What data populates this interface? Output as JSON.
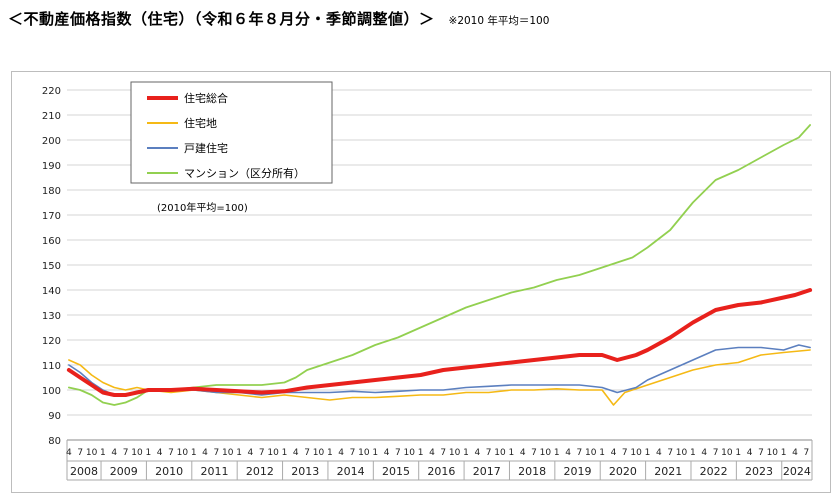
{
  "header": {
    "title": "＜不動産価格指数（住宅）（令和６年８月分・季節調整値）＞",
    "note": "※2010 年平均＝100"
  },
  "chart_data": {
    "type": "line",
    "note": "(2010年平均=100)",
    "ylim": [
      80,
      220
    ],
    "yticks": [
      80,
      90,
      100,
      110,
      120,
      130,
      140,
      150,
      160,
      170,
      180,
      190,
      200,
      210,
      220
    ],
    "x_month_labels": [
      "4",
      "7",
      "10",
      "1"
    ],
    "years": [
      "2008",
      "2009",
      "2010",
      "2011",
      "2012",
      "2013",
      "2014",
      "2015",
      "2016",
      "2017",
      "2018",
      "2019",
      "2020",
      "2021",
      "2022",
      "2023",
      "2024"
    ],
    "x_start": "2008-04",
    "x_end": "2024-08",
    "grid": true,
    "legend_position": "top-left",
    "series": [
      {
        "name": "住宅総合",
        "color": "#e8211c",
        "width": 4,
        "points": [
          [
            "2008-04",
            108
          ],
          [
            "2008-07",
            105
          ],
          [
            "2008-10",
            102
          ],
          [
            "2009-01",
            99
          ],
          [
            "2009-04",
            98
          ],
          [
            "2009-07",
            98
          ],
          [
            "2009-10",
            99
          ],
          [
            "2010-01",
            100
          ],
          [
            "2010-07",
            100
          ],
          [
            "2011-01",
            100.5
          ],
          [
            "2011-07",
            100
          ],
          [
            "2012-01",
            99.5
          ],
          [
            "2012-07",
            99
          ],
          [
            "2013-01",
            99.5
          ],
          [
            "2013-07",
            101
          ],
          [
            "2014-01",
            102
          ],
          [
            "2014-07",
            103
          ],
          [
            "2015-01",
            104
          ],
          [
            "2015-07",
            105
          ],
          [
            "2016-01",
            106
          ],
          [
            "2016-07",
            108
          ],
          [
            "2017-01",
            109
          ],
          [
            "2017-07",
            110
          ],
          [
            "2018-01",
            111
          ],
          [
            "2018-07",
            112
          ],
          [
            "2019-01",
            113
          ],
          [
            "2019-07",
            114
          ],
          [
            "2020-01",
            114
          ],
          [
            "2020-05",
            112
          ],
          [
            "2020-10",
            114
          ],
          [
            "2021-01",
            116
          ],
          [
            "2021-07",
            121
          ],
          [
            "2022-01",
            127
          ],
          [
            "2022-07",
            132
          ],
          [
            "2023-01",
            134
          ],
          [
            "2023-07",
            135
          ],
          [
            "2024-01",
            137
          ],
          [
            "2024-04",
            138
          ],
          [
            "2024-08",
            140
          ]
        ]
      },
      {
        "name": "住宅地",
        "color": "#f5b915",
        "width": 1.6,
        "points": [
          [
            "2008-04",
            112
          ],
          [
            "2008-07",
            110
          ],
          [
            "2008-10",
            106
          ],
          [
            "2009-01",
            103
          ],
          [
            "2009-04",
            101
          ],
          [
            "2009-07",
            100
          ],
          [
            "2009-10",
            101
          ],
          [
            "2010-01",
            100
          ],
          [
            "2010-07",
            99
          ],
          [
            "2011-01",
            100
          ],
          [
            "2011-07",
            99
          ],
          [
            "2012-01",
            98
          ],
          [
            "2012-07",
            97
          ],
          [
            "2013-01",
            98
          ],
          [
            "2013-07",
            97
          ],
          [
            "2014-01",
            96
          ],
          [
            "2014-07",
            97
          ],
          [
            "2015-01",
            97
          ],
          [
            "2015-07",
            97.5
          ],
          [
            "2016-01",
            98
          ],
          [
            "2016-07",
            98
          ],
          [
            "2017-01",
            99
          ],
          [
            "2017-07",
            99
          ],
          [
            "2018-01",
            100
          ],
          [
            "2018-07",
            100
          ],
          [
            "2019-01",
            100.5
          ],
          [
            "2019-07",
            100
          ],
          [
            "2020-01",
            100
          ],
          [
            "2020-04",
            94
          ],
          [
            "2020-07",
            99
          ],
          [
            "2021-01",
            102
          ],
          [
            "2021-07",
            105
          ],
          [
            "2022-01",
            108
          ],
          [
            "2022-07",
            110
          ],
          [
            "2023-01",
            111
          ],
          [
            "2023-07",
            114
          ],
          [
            "2024-01",
            115
          ],
          [
            "2024-08",
            116
          ]
        ]
      },
      {
        "name": "戸建住宅",
        "color": "#5b7fbf",
        "width": 1.6,
        "points": [
          [
            "2008-04",
            110
          ],
          [
            "2008-07",
            107
          ],
          [
            "2008-10",
            103
          ],
          [
            "2009-01",
            100
          ],
          [
            "2009-04",
            98
          ],
          [
            "2009-07",
            98
          ],
          [
            "2009-10",
            99
          ],
          [
            "2010-01",
            100
          ],
          [
            "2010-07",
            100
          ],
          [
            "2011-01",
            100
          ],
          [
            "2011-07",
            99
          ],
          [
            "2012-01",
            99
          ],
          [
            "2012-07",
            98
          ],
          [
            "2013-01",
            99
          ],
          [
            "2013-07",
            99
          ],
          [
            "2014-01",
            99
          ],
          [
            "2014-07",
            99.5
          ],
          [
            "2015-01",
            99
          ],
          [
            "2015-07",
            99.5
          ],
          [
            "2016-01",
            100
          ],
          [
            "2016-07",
            100
          ],
          [
            "2017-01",
            101
          ],
          [
            "2017-07",
            101.5
          ],
          [
            "2018-01",
            102
          ],
          [
            "2018-07",
            102
          ],
          [
            "2019-01",
            102
          ],
          [
            "2019-07",
            102
          ],
          [
            "2020-01",
            101
          ],
          [
            "2020-05",
            99
          ],
          [
            "2020-10",
            101
          ],
          [
            "2021-01",
            104
          ],
          [
            "2021-07",
            108
          ],
          [
            "2022-01",
            112
          ],
          [
            "2022-07",
            116
          ],
          [
            "2023-01",
            117
          ],
          [
            "2023-07",
            117
          ],
          [
            "2024-01",
            116
          ],
          [
            "2024-05",
            118
          ],
          [
            "2024-08",
            117
          ]
        ]
      },
      {
        "name": "マンション（区分所有）",
        "color": "#92d050",
        "width": 1.8,
        "points": [
          [
            "2008-04",
            101
          ],
          [
            "2008-07",
            100
          ],
          [
            "2008-10",
            98
          ],
          [
            "2009-01",
            95
          ],
          [
            "2009-04",
            94
          ],
          [
            "2009-07",
            95
          ],
          [
            "2009-10",
            97
          ],
          [
            "2010-01",
            100
          ],
          [
            "2010-07",
            100
          ],
          [
            "2011-01",
            101
          ],
          [
            "2011-07",
            102
          ],
          [
            "2012-01",
            102
          ],
          [
            "2012-07",
            102
          ],
          [
            "2013-01",
            103
          ],
          [
            "2013-04",
            105
          ],
          [
            "2013-07",
            108
          ],
          [
            "2014-01",
            111
          ],
          [
            "2014-07",
            114
          ],
          [
            "2015-01",
            118
          ],
          [
            "2015-07",
            121
          ],
          [
            "2016-01",
            125
          ],
          [
            "2016-07",
            129
          ],
          [
            "2017-01",
            133
          ],
          [
            "2017-07",
            136
          ],
          [
            "2018-01",
            139
          ],
          [
            "2018-07",
            141
          ],
          [
            "2019-01",
            144
          ],
          [
            "2019-07",
            146
          ],
          [
            "2020-01",
            149
          ],
          [
            "2020-05",
            151
          ],
          [
            "2020-09",
            153
          ],
          [
            "2021-01",
            157
          ],
          [
            "2021-07",
            164
          ],
          [
            "2022-01",
            175
          ],
          [
            "2022-07",
            184
          ],
          [
            "2023-01",
            188
          ],
          [
            "2023-07",
            193
          ],
          [
            "2024-01",
            198
          ],
          [
            "2024-05",
            201
          ],
          [
            "2024-08",
            206
          ]
        ]
      }
    ]
  }
}
